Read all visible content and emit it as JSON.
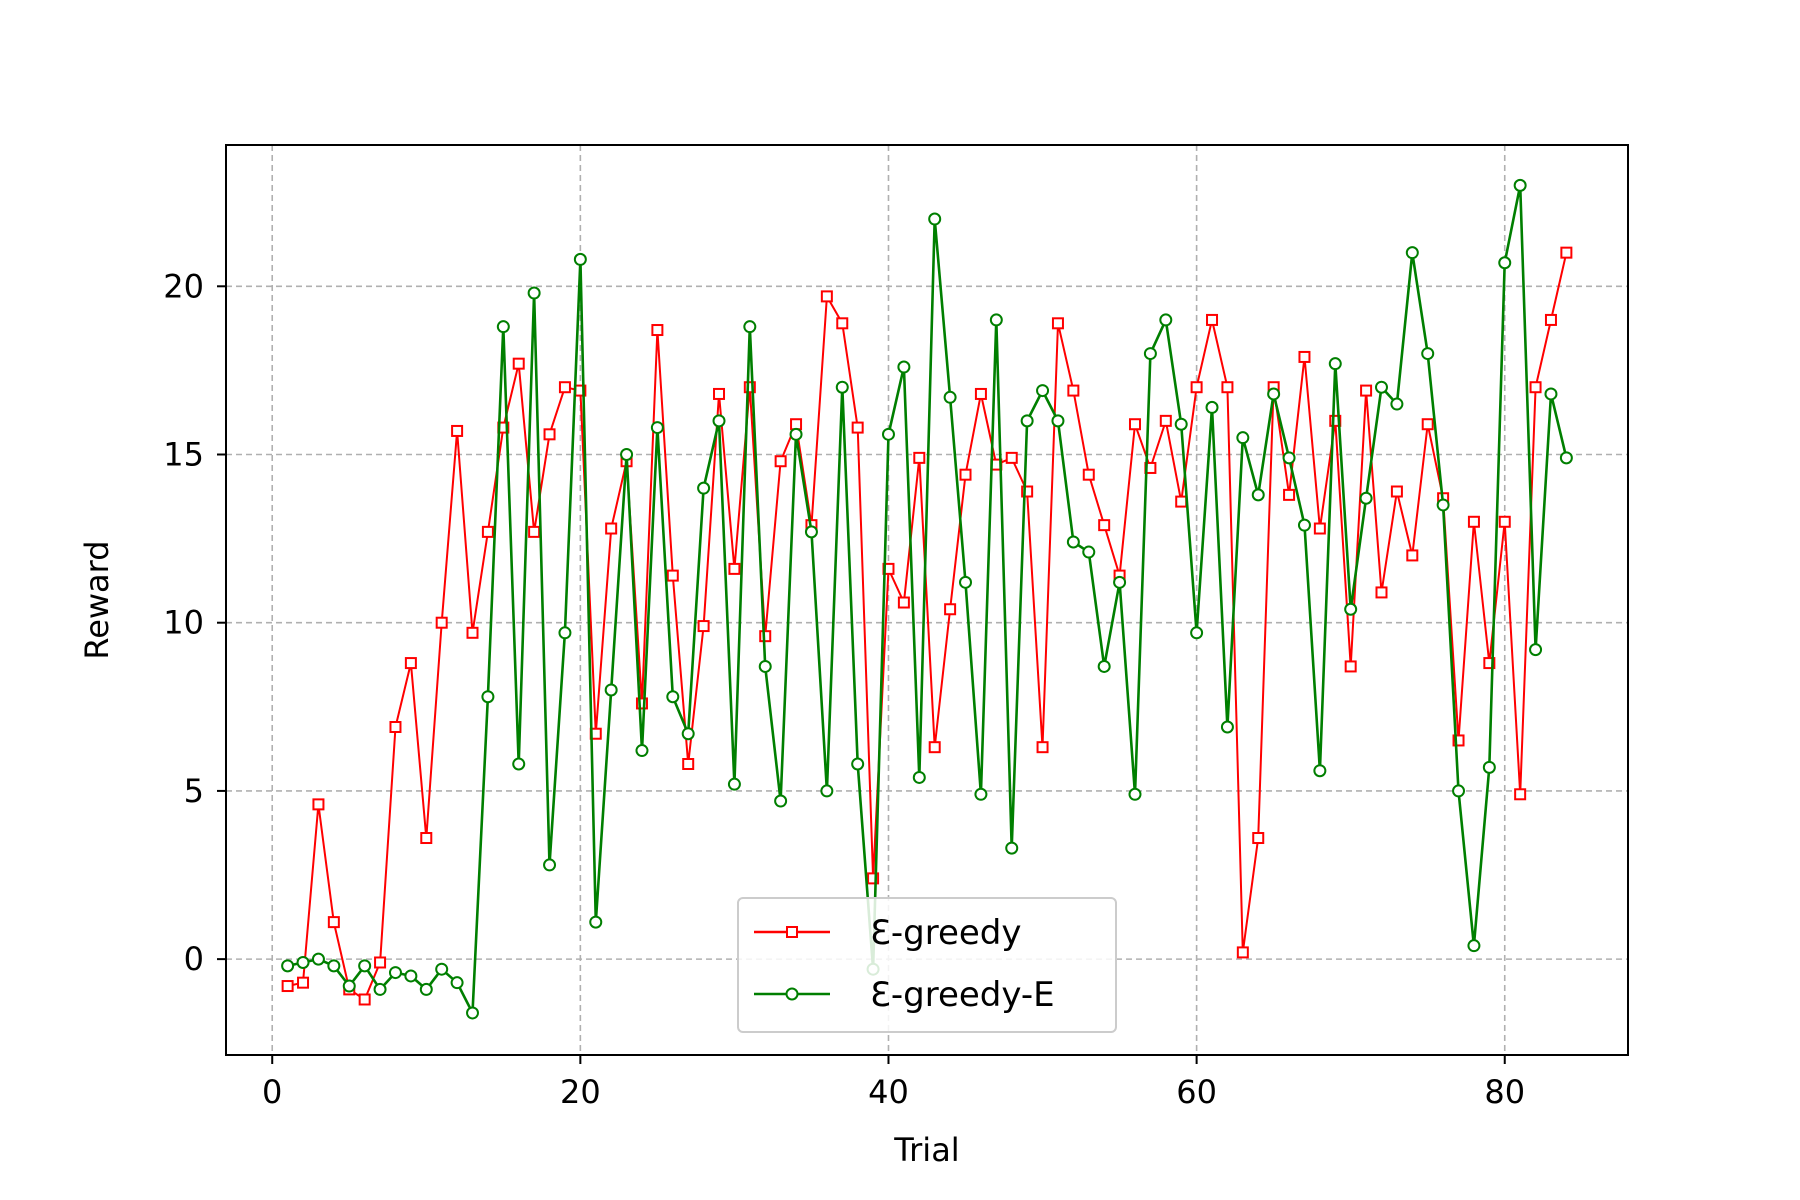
{
  "chart_data": {
    "type": "line",
    "title": "",
    "xlabel": "Trial",
    "ylabel": "Reward",
    "xlim": [
      -3,
      88
    ],
    "ylim": [
      -2.85,
      24.2
    ],
    "xticks": [
      0,
      20,
      40,
      60,
      80
    ],
    "yticks": [
      0,
      5,
      10,
      15,
      20
    ],
    "grid": true,
    "legend_position": "bottom-center",
    "x": [
      1,
      2,
      3,
      4,
      5,
      6,
      7,
      8,
      9,
      10,
      11,
      12,
      13,
      14,
      15,
      16,
      17,
      18,
      19,
      20,
      21,
      22,
      23,
      24,
      25,
      26,
      27,
      28,
      29,
      30,
      31,
      32,
      33,
      34,
      35,
      36,
      37,
      38,
      39,
      40,
      41,
      42,
      43,
      44,
      45,
      46,
      47,
      48,
      49,
      50,
      51,
      52,
      53,
      54,
      55,
      56,
      57,
      58,
      59,
      60,
      61,
      62,
      63,
      64,
      65,
      66,
      67,
      68,
      69,
      70,
      71,
      72,
      73,
      74,
      75,
      76,
      77,
      78,
      79,
      80,
      81,
      82,
      83,
      84
    ],
    "series": [
      {
        "name": "Ɛ-greedy",
        "color": "#ff0000",
        "marker": "square",
        "values": [
          -0.8,
          -0.7,
          4.6,
          1.1,
          -0.9,
          -1.2,
          -0.1,
          6.9,
          8.8,
          3.6,
          10.0,
          15.7,
          9.7,
          12.7,
          15.8,
          17.7,
          12.7,
          15.6,
          17.0,
          16.9,
          6.7,
          12.8,
          14.8,
          7.6,
          18.7,
          11.4,
          5.8,
          9.9,
          16.8,
          11.6,
          17.0,
          9.6,
          14.8,
          15.9,
          12.9,
          19.7,
          18.9,
          15.8,
          2.4,
          11.6,
          10.6,
          14.9,
          6.3,
          10.4,
          14.4,
          16.8,
          14.7,
          14.9,
          13.9,
          6.3,
          18.9,
          16.9,
          14.4,
          12.9,
          11.4,
          15.9,
          14.6,
          16.0,
          13.6,
          17.0,
          19.0,
          17.0,
          0.2,
          3.6,
          17.0,
          13.8,
          17.9,
          12.8,
          16.0,
          8.7,
          16.9,
          10.9,
          13.9,
          12.0,
          15.9,
          13.7,
          6.5,
          13.0,
          8.8,
          13.0,
          4.9,
          17.0,
          19.0,
          21.0
        ]
      },
      {
        "name": "Ɛ-greedy-E",
        "color": "#007f00",
        "marker": "circle",
        "values": [
          -0.2,
          -0.1,
          0.0,
          -0.2,
          -0.8,
          -0.2,
          -0.9,
          -0.4,
          -0.5,
          -0.9,
          -0.3,
          -0.7,
          -1.6,
          7.8,
          18.8,
          5.8,
          19.8,
          2.8,
          9.7,
          20.8,
          1.1,
          8.0,
          15.0,
          6.2,
          15.8,
          7.8,
          6.7,
          14.0,
          16.0,
          5.2,
          18.8,
          8.7,
          4.7,
          15.6,
          12.7,
          5.0,
          17.0,
          5.8,
          -0.3,
          15.6,
          17.6,
          5.4,
          22.0,
          16.7,
          11.2,
          4.9,
          19.0,
          3.3,
          16.0,
          16.9,
          16.0,
          12.4,
          12.1,
          8.7,
          11.2,
          4.9,
          18.0,
          19.0,
          15.9,
          9.7,
          16.4,
          6.9,
          15.5,
          13.8,
          16.8,
          14.9,
          12.9,
          5.6,
          17.7,
          10.4,
          13.7,
          17.0,
          16.5,
          21.0,
          18.0,
          13.5,
          5.0,
          0.4,
          5.7,
          20.7,
          23.0,
          9.2,
          16.8,
          14.9
        ]
      }
    ]
  }
}
